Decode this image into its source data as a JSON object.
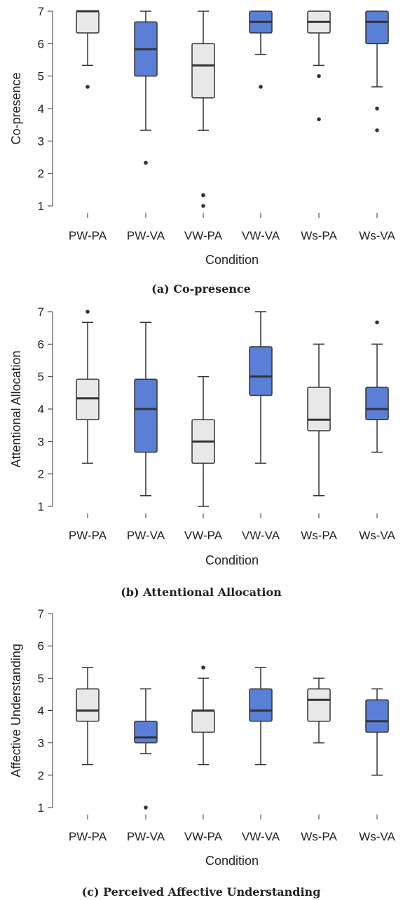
{
  "colors": {
    "light": "#e8e8e8",
    "blue": "#5b7fd6",
    "stroke": "#333333"
  },
  "chart_data": [
    {
      "type": "boxplot",
      "caption": "(a) Co-presence",
      "xlabel": "Condition",
      "ylabel": "Co-presence",
      "ylim": [
        1,
        7
      ],
      "yticks": [
        "1",
        "2",
        "3",
        "4",
        "5",
        "6",
        "7"
      ],
      "categories": [
        "PW-PA",
        "PW-VA",
        "VW-PA",
        "VW-VA",
        "Ws-PA",
        "Ws-VA"
      ],
      "fills": [
        "light",
        "blue",
        "light",
        "blue",
        "light",
        "blue"
      ],
      "boxes": [
        {
          "whislo": 5.33,
          "q1": 6.33,
          "med": 7.0,
          "q3": 7.0,
          "whishi": 7.0,
          "fliers": [
            4.67
          ]
        },
        {
          "whislo": 3.33,
          "q1": 5.0,
          "med": 5.83,
          "q3": 6.67,
          "whishi": 7.0,
          "fliers": [
            2.33
          ]
        },
        {
          "whislo": 3.33,
          "q1": 4.33,
          "med": 5.33,
          "q3": 6.0,
          "whishi": 7.0,
          "fliers": [
            1.33,
            1.0
          ]
        },
        {
          "whislo": 5.67,
          "q1": 6.33,
          "med": 6.67,
          "q3": 7.0,
          "whishi": 7.0,
          "fliers": [
            4.67
          ]
        },
        {
          "whislo": 5.33,
          "q1": 6.33,
          "med": 6.67,
          "q3": 7.0,
          "whishi": 7.0,
          "fliers": [
            5.0,
            3.67
          ]
        },
        {
          "whislo": 4.67,
          "q1": 6.0,
          "med": 6.67,
          "q3": 7.0,
          "whishi": 7.0,
          "fliers": [
            4.0,
            3.33
          ]
        }
      ]
    },
    {
      "type": "boxplot",
      "caption": "(b) Attentional Allocation",
      "xlabel": "Condition",
      "ylabel": "Attentional Allocation",
      "ylim": [
        1,
        7
      ],
      "yticks": [
        "1",
        "2",
        "3",
        "4",
        "5",
        "6",
        "7"
      ],
      "categories": [
        "PW-PA",
        "PW-VA",
        "VW-PA",
        "VW-VA",
        "Ws-PA",
        "Ws-VA"
      ],
      "fills": [
        "light",
        "blue",
        "light",
        "blue",
        "light",
        "blue"
      ],
      "boxes": [
        {
          "whislo": 2.33,
          "q1": 3.67,
          "med": 4.33,
          "q3": 4.92,
          "whishi": 6.67,
          "fliers": [
            7.0
          ]
        },
        {
          "whislo": 1.33,
          "q1": 2.67,
          "med": 4.0,
          "q3": 4.92,
          "whishi": 6.67,
          "fliers": []
        },
        {
          "whislo": 1.0,
          "q1": 2.33,
          "med": 3.0,
          "q3": 3.67,
          "whishi": 5.0,
          "fliers": []
        },
        {
          "whislo": 2.33,
          "q1": 4.42,
          "med": 5.0,
          "q3": 5.92,
          "whishi": 7.0,
          "fliers": []
        },
        {
          "whislo": 1.33,
          "q1": 3.33,
          "med": 3.67,
          "q3": 4.67,
          "whishi": 6.0,
          "fliers": []
        },
        {
          "whislo": 2.67,
          "q1": 3.67,
          "med": 4.0,
          "q3": 4.67,
          "whishi": 6.0,
          "fliers": [
            6.67
          ]
        }
      ]
    },
    {
      "type": "boxplot",
      "caption": "(c) Perceived Affective Understanding",
      "xlabel": "Condition",
      "ylabel": "Affective Understanding",
      "ylim": [
        1,
        7
      ],
      "yticks": [
        "1",
        "2",
        "3",
        "4",
        "5",
        "6",
        "7"
      ],
      "categories": [
        "PW-PA",
        "PW-VA",
        "VW-PA",
        "VW-VA",
        "Ws-PA",
        "Ws-VA"
      ],
      "fills": [
        "light",
        "blue",
        "light",
        "blue",
        "light",
        "blue"
      ],
      "boxes": [
        {
          "whislo": 2.33,
          "q1": 3.67,
          "med": 4.0,
          "q3": 4.67,
          "whishi": 5.33,
          "fliers": []
        },
        {
          "whislo": 2.67,
          "q1": 3.0,
          "med": 3.17,
          "q3": 3.67,
          "whishi": 4.67,
          "fliers": [
            1.0
          ]
        },
        {
          "whislo": 2.33,
          "q1": 3.33,
          "med": 4.0,
          "q3": 4.0,
          "whishi": 5.0,
          "fliers": [
            5.33
          ]
        },
        {
          "whislo": 2.33,
          "q1": 3.67,
          "med": 4.0,
          "q3": 4.67,
          "whishi": 5.33,
          "fliers": []
        },
        {
          "whislo": 3.0,
          "q1": 3.67,
          "med": 4.33,
          "q3": 4.67,
          "whishi": 5.0,
          "fliers": []
        },
        {
          "whislo": 2.0,
          "q1": 3.33,
          "med": 3.67,
          "q3": 4.33,
          "whishi": 4.67,
          "fliers": []
        }
      ]
    }
  ]
}
